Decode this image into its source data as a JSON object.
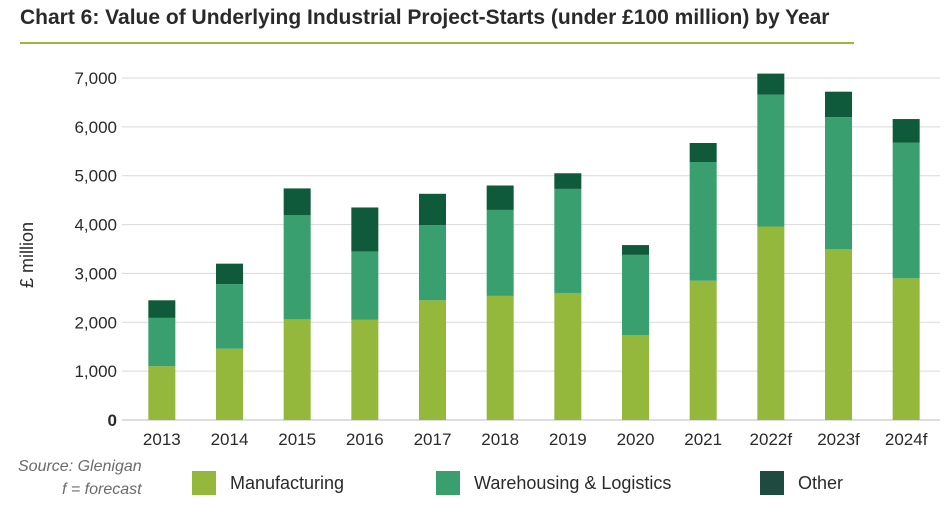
{
  "title": "Chart 6: Value of Underlying Industrial Project-Starts (under £100 million) by Year",
  "source": "Source: Glenigan",
  "forecast_note": "f = forecast",
  "colors": {
    "manufacturing": "#93b83c",
    "warehousing": "#3a9f6e",
    "other": "#0e5a3a",
    "legend_other": "#1f4a40",
    "title_rule": "#9ab83e",
    "grid": "#d9d9d9"
  },
  "chart_data": {
    "type": "bar",
    "stacked": true,
    "title": "Chart 6: Value of Underlying Industrial Project-Starts (under £100 million) by Year",
    "xlabel": "",
    "ylabel": "£ million",
    "ylim": [
      0,
      7000
    ],
    "yticks": [
      0,
      1000,
      2000,
      3000,
      4000,
      5000,
      6000,
      7000
    ],
    "ytick_labels": [
      "0",
      "1,000",
      "2,000",
      "3,000",
      "4,000",
      "5,000",
      "6,000",
      "7,000"
    ],
    "categories": [
      "2013",
      "2014",
      "2015",
      "2016",
      "2017",
      "2018",
      "2019",
      "2020",
      "2021",
      "2022f",
      "2023f",
      "2024f"
    ],
    "series": [
      {
        "name": "Manufacturing",
        "values": [
          1100,
          1460,
          2060,
          2050,
          2450,
          2540,
          2600,
          1740,
          2850,
          3960,
          3500,
          2900
        ]
      },
      {
        "name": "Warehousing & Logistics",
        "values": [
          990,
          1320,
          2130,
          1400,
          1540,
          1760,
          2130,
          1640,
          2430,
          2700,
          2700,
          2780
        ]
      },
      {
        "name": "Other",
        "values": [
          360,
          420,
          550,
          900,
          640,
          500,
          320,
          200,
          390,
          430,
          520,
          480
        ]
      }
    ],
    "grid": true,
    "legend_position": "bottom"
  }
}
